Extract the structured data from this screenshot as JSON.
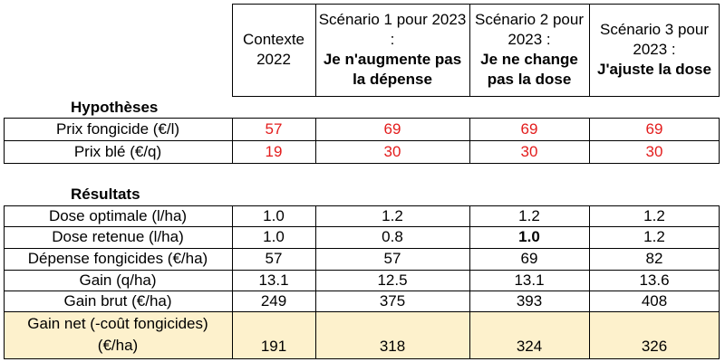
{
  "columns": [
    {
      "plain": "Contexte 2022",
      "bold": ""
    },
    {
      "plain": "Scénario 1 pour 2023 :",
      "bold": "Je n'augmente pas la dépense"
    },
    {
      "plain": "Scénario 2 pour 2023 :",
      "bold": "Je ne change pas la dose"
    },
    {
      "plain": "Scénario 3 pour 2023 :",
      "bold": "J'ajuste la dose"
    }
  ],
  "hypotheses": {
    "title": "Hypothèses",
    "rows": [
      {
        "label": "Prix fongicide (€/l)",
        "values": [
          "57",
          "69",
          "69",
          "69"
        ]
      },
      {
        "label": "Prix blé (€/q)",
        "values": [
          "19",
          "30",
          "30",
          "30"
        ]
      }
    ]
  },
  "resultats": {
    "title": "Résultats",
    "rows": [
      {
        "label": "Dose optimale (l/ha)",
        "values": [
          "1.0",
          "1.2",
          "1.2",
          "1.2"
        ]
      },
      {
        "label": "Dose retenue (l/ha)",
        "values": [
          "1.0",
          "0.8",
          "1.0",
          "1.2"
        ]
      },
      {
        "label": "Dépense fongicides (€/ha)",
        "values": [
          "57",
          "57",
          "69",
          "82"
        ]
      },
      {
        "label": "Gain (q/ha)",
        "values": [
          "13.1",
          "12.5",
          "13.1",
          "13.6"
        ]
      },
      {
        "label": "Gain brut (€/ha)",
        "values": [
          "249",
          "375",
          "393",
          "408"
        ]
      },
      {
        "label_line1": "Gain net (-coût fongicides)",
        "label_line2": "(€/ha)",
        "values": [
          "191",
          "318",
          "324",
          "326"
        ]
      }
    ]
  },
  "colors": {
    "highlight_value": "#e31c1c",
    "highlight_row": "#fdf1cc"
  }
}
